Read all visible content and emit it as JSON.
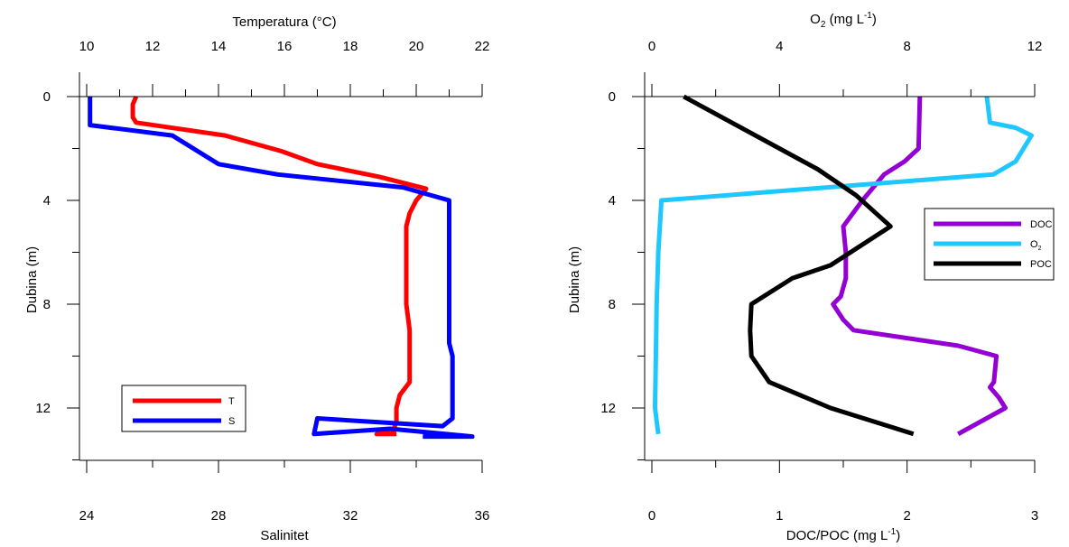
{
  "chart_data": [
    {
      "type": "line",
      "panel": "left",
      "ylabel": "Dubina (m)",
      "ylim": [
        14,
        0
      ],
      "y_ticks": [
        0,
        4,
        8,
        12
      ],
      "top_axis": {
        "label": "Temperatura (°C)",
        "lim": [
          10,
          22
        ],
        "ticks": [
          10,
          12,
          14,
          16,
          18,
          20,
          22
        ]
      },
      "bottom_axis": {
        "label": "Salinitet",
        "lim": [
          24,
          36
        ],
        "ticks": [
          24,
          28,
          32,
          36
        ]
      },
      "legend_placement": "bottom-left",
      "series": [
        {
          "name": "T",
          "axis": "top",
          "color": "#ff0000",
          "points": [
            {
              "x": 11.5,
              "y": 0
            },
            {
              "x": 11.4,
              "y": 0.3
            },
            {
              "x": 11.4,
              "y": 0.8
            },
            {
              "x": 11.5,
              "y": 1.0
            },
            {
              "x": 14.2,
              "y": 1.5
            },
            {
              "x": 15.9,
              "y": 2.1
            },
            {
              "x": 17.0,
              "y": 2.6
            },
            {
              "x": 18.9,
              "y": 3.1
            },
            {
              "x": 20.3,
              "y": 3.55
            },
            {
              "x": 20.0,
              "y": 4.0
            },
            {
              "x": 19.8,
              "y": 4.5
            },
            {
              "x": 19.7,
              "y": 5.0
            },
            {
              "x": 19.7,
              "y": 6.0
            },
            {
              "x": 19.7,
              "y": 7.0
            },
            {
              "x": 19.7,
              "y": 8.0
            },
            {
              "x": 19.8,
              "y": 9.0
            },
            {
              "x": 19.8,
              "y": 10.0
            },
            {
              "x": 19.8,
              "y": 11.0
            },
            {
              "x": 19.5,
              "y": 11.5
            },
            {
              "x": 19.4,
              "y": 12.0
            },
            {
              "x": 19.4,
              "y": 12.5
            },
            {
              "x": 19.3,
              "y": 12.9
            },
            {
              "x": 18.8,
              "y": 13.0
            },
            {
              "x": 19.4,
              "y": 13.0
            }
          ]
        },
        {
          "name": "S",
          "axis": "bottom",
          "color": "#0000ff",
          "points": [
            {
              "x": 24.1,
              "y": 0
            },
            {
              "x": 24.1,
              "y": 0.6
            },
            {
              "x": 24.1,
              "y": 1.1
            },
            {
              "x": 26.6,
              "y": 1.5
            },
            {
              "x": 28.0,
              "y": 2.6
            },
            {
              "x": 29.8,
              "y": 3.0
            },
            {
              "x": 33.6,
              "y": 3.5
            },
            {
              "x": 35.0,
              "y": 4.0
            },
            {
              "x": 35.0,
              "y": 4.5
            },
            {
              "x": 35.0,
              "y": 6.0
            },
            {
              "x": 35.0,
              "y": 8.0
            },
            {
              "x": 35.0,
              "y": 9.5
            },
            {
              "x": 35.1,
              "y": 10.0
            },
            {
              "x": 35.1,
              "y": 11.0
            },
            {
              "x": 35.1,
              "y": 12.0
            },
            {
              "x": 35.1,
              "y": 12.4
            },
            {
              "x": 34.8,
              "y": 12.7
            },
            {
              "x": 31.0,
              "y": 12.4
            },
            {
              "x": 30.9,
              "y": 13.0
            },
            {
              "x": 33.2,
              "y": 12.8
            },
            {
              "x": 35.7,
              "y": 13.1
            },
            {
              "x": 34.2,
              "y": 13.1
            }
          ]
        }
      ]
    },
    {
      "type": "line",
      "panel": "right",
      "ylabel": "Dubina (m)",
      "ylim": [
        14,
        0
      ],
      "y_ticks": [
        0,
        4,
        8,
        12
      ],
      "top_axis": {
        "label_main": "O",
        "label_sub": "2",
        "label_rest": " (mg L",
        "label_sup": "-1",
        "label_close": ")",
        "lim": [
          0,
          12
        ],
        "ticks": [
          0,
          4,
          8,
          12
        ]
      },
      "bottom_axis": {
        "label_main": "DOC/POC (mg L",
        "label_sup": "-1",
        "label_close": ")",
        "lim": [
          0,
          3
        ],
        "ticks": [
          0,
          1,
          2,
          3
        ]
      },
      "legend_placement": "right",
      "series": [
        {
          "name": "DOC",
          "axis": "bottom",
          "color": "#9400d3",
          "points": [
            {
              "x": 2.1,
              "y": 0
            },
            {
              "x": 2.09,
              "y": 2.0
            },
            {
              "x": 1.98,
              "y": 2.5
            },
            {
              "x": 1.82,
              "y": 3.0
            },
            {
              "x": 1.65,
              "y": 4.0
            },
            {
              "x": 1.5,
              "y": 5.0
            },
            {
              "x": 1.52,
              "y": 6.0
            },
            {
              "x": 1.52,
              "y": 7.0
            },
            {
              "x": 1.48,
              "y": 7.7
            },
            {
              "x": 1.42,
              "y": 8.0
            },
            {
              "x": 1.5,
              "y": 8.6
            },
            {
              "x": 1.58,
              "y": 9.0
            },
            {
              "x": 2.4,
              "y": 9.6
            },
            {
              "x": 2.7,
              "y": 10.0
            },
            {
              "x": 2.68,
              "y": 11.0
            },
            {
              "x": 2.65,
              "y": 11.2
            },
            {
              "x": 2.72,
              "y": 11.6
            },
            {
              "x": 2.77,
              "y": 12.0
            },
            {
              "x": 2.4,
              "y": 13.0
            }
          ]
        },
        {
          "name": "O2",
          "legend_main": "O",
          "legend_sub": "2",
          "axis": "top",
          "color": "#1ec8ff",
          "points": [
            {
              "x": 10.5,
              "y": 0
            },
            {
              "x": 10.6,
              "y": 1.0
            },
            {
              "x": 11.4,
              "y": 1.2
            },
            {
              "x": 11.9,
              "y": 1.5
            },
            {
              "x": 11.4,
              "y": 2.5
            },
            {
              "x": 10.7,
              "y": 3.0
            },
            {
              "x": 5.5,
              "y": 3.5
            },
            {
              "x": 0.3,
              "y": 4.0
            },
            {
              "x": 0.2,
              "y": 6.0
            },
            {
              "x": 0.15,
              "y": 8.0
            },
            {
              "x": 0.1,
              "y": 12.0
            },
            {
              "x": 0.2,
              "y": 13.0
            }
          ]
        },
        {
          "name": "POC",
          "axis": "bottom",
          "color": "#000000",
          "points": [
            {
              "x": 0.25,
              "y": 0
            },
            {
              "x": 1.3,
              "y": 2.8
            },
            {
              "x": 1.6,
              "y": 3.8
            },
            {
              "x": 1.87,
              "y": 5.0
            },
            {
              "x": 1.4,
              "y": 6.5
            },
            {
              "x": 1.1,
              "y": 7.0
            },
            {
              "x": 0.78,
              "y": 8.0
            },
            {
              "x": 0.77,
              "y": 9.0
            },
            {
              "x": 0.78,
              "y": 10.0
            },
            {
              "x": 0.92,
              "y": 11.0
            },
            {
              "x": 1.4,
              "y": 12.0
            },
            {
              "x": 2.05,
              "y": 13.0
            }
          ]
        }
      ]
    }
  ]
}
